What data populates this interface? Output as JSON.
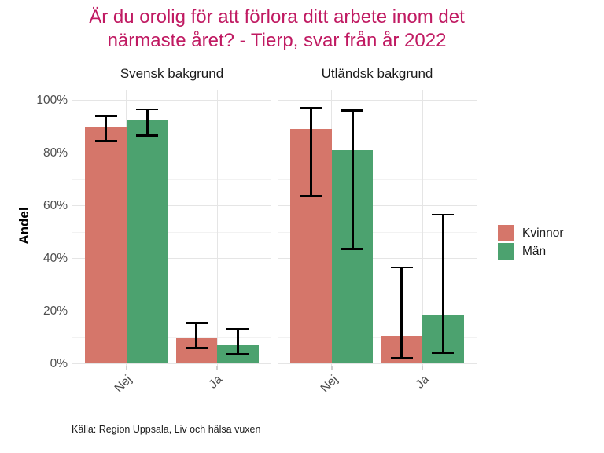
{
  "title": {
    "line1": "Är du orolig för att förlora ditt arbete inom det",
    "line2": "närmaste året? - Tierp, svar från år 2022",
    "color": "#c01a62"
  },
  "y_axis": {
    "title": "Andel",
    "tick_labels": [
      "0%",
      "20%",
      "40%",
      "60%",
      "80%",
      "100%"
    ]
  },
  "caption": "Källa: Region Uppsala, Liv och hälsa vuxen",
  "legend": {
    "items": [
      {
        "label": "Kvinnor",
        "color": "#d5766a"
      },
      {
        "label": "Män",
        "color": "#4ca26f"
      }
    ]
  },
  "chart_data": {
    "type": "bar",
    "title": "Är du orolig för att förlora ditt arbete inom det närmaste året? - Tierp, svar från år 2022",
    "ylabel": "Andel",
    "ylim": [
      0,
      100
    ],
    "y_tick_step_pct": 20,
    "y_minor_grid_step_pct": 10,
    "grid": "major+minor horizontal, major vertical at categories",
    "legend_position": "right",
    "error_bars": true,
    "value_unit": "%",
    "categories": [
      "Nej",
      "Ja"
    ],
    "facets": [
      {
        "label": "Svensk bakgrund",
        "series": [
          {
            "name": "Kvinnor",
            "color": "#d5766a",
            "values": [
              90,
              9.5
            ],
            "ci_low": [
              84.5,
              6
            ],
            "ci_high": [
              94,
              15.5
            ]
          },
          {
            "name": "Män",
            "color": "#4ca26f",
            "values": [
              92.5,
              7
            ],
            "ci_low": [
              86.5,
              3.5
            ],
            "ci_high": [
              96.5,
              13
            ]
          }
        ]
      },
      {
        "label": "Utländsk bakgrund",
        "series": [
          {
            "name": "Kvinnor",
            "color": "#d5766a",
            "values": [
              89,
              10.5
            ],
            "ci_low": [
              63.5,
              2
            ],
            "ci_high": [
              97,
              36.5
            ]
          },
          {
            "name": "Män",
            "color": "#4ca26f",
            "values": [
              81,
              18.5
            ],
            "ci_low": [
              43.5,
              4
            ],
            "ci_high": [
              96,
              56.5
            ]
          }
        ]
      }
    ]
  }
}
